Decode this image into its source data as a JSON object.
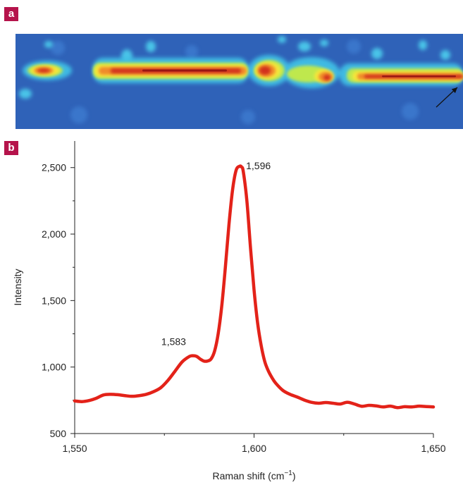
{
  "panels": {
    "a_label": "a",
    "b_label": "b"
  },
  "chart_data": {
    "type": "line",
    "title": "",
    "xlabel": "Raman shift (cm",
    "xlabel_sup": "−1",
    "xlabel_suffix": ")",
    "ylabel": "Intensity",
    "xlim": [
      1550,
      1650
    ],
    "ylim": [
      500,
      2700
    ],
    "x_ticks": [
      1550,
      1600,
      1650
    ],
    "x_tick_labels": [
      "1,550",
      "1,600",
      "1,650"
    ],
    "x_minor_ticks": [
      1575,
      1625
    ],
    "y_ticks": [
      500,
      1000,
      1500,
      2000,
      2500
    ],
    "y_tick_labels": [
      "500",
      "1,000",
      "1,500",
      "2,000",
      "2,500"
    ],
    "y_minor_ticks": [
      750,
      1250,
      1750,
      2250
    ],
    "grid": false,
    "line_color": "#e32219",
    "annotations": [
      {
        "text": "1,583",
        "x": 1583,
        "y": 1080
      },
      {
        "text": "1,596",
        "x": 1596,
        "y": 2510
      }
    ],
    "series": [
      {
        "x": [
          1550,
          1552,
          1554,
          1556,
          1558,
          1560,
          1562,
          1564,
          1566,
          1568,
          1570,
          1572,
          1574,
          1576,
          1578,
          1580,
          1582,
          1583,
          1584,
          1585,
          1586,
          1587,
          1588,
          1589,
          1590,
          1591,
          1592,
          1593,
          1594,
          1595,
          1596,
          1596.5,
          1597,
          1598,
          1599,
          1600,
          1601,
          1602,
          1603,
          1604,
          1605,
          1606,
          1608,
          1610,
          1612,
          1614,
          1616,
          1618,
          1620,
          1622,
          1624,
          1626,
          1628,
          1630,
          1632,
          1634,
          1636,
          1638,
          1640,
          1642,
          1644,
          1646,
          1648,
          1650
        ],
        "y": [
          745,
          740,
          748,
          765,
          790,
          795,
          792,
          785,
          780,
          785,
          795,
          815,
          845,
          900,
          970,
          1040,
          1080,
          1085,
          1080,
          1060,
          1045,
          1045,
          1060,
          1120,
          1250,
          1460,
          1750,
          2070,
          2330,
          2480,
          2510,
          2505,
          2470,
          2250,
          1900,
          1580,
          1330,
          1160,
          1040,
          970,
          920,
          880,
          825,
          795,
          775,
          752,
          735,
          728,
          733,
          728,
          722,
          735,
          722,
          705,
          712,
          708,
          700,
          706,
          695,
          702,
          700,
          706,
          703,
          700
        ]
      }
    ]
  }
}
